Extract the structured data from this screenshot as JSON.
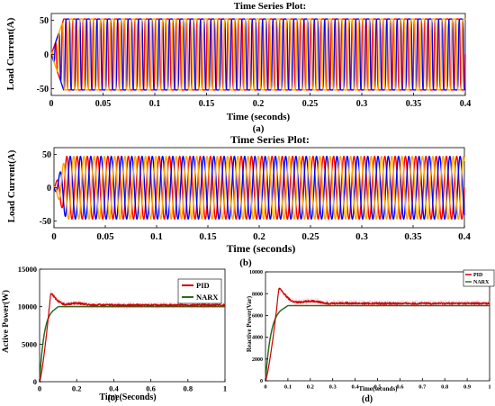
{
  "chart_data": [
    {
      "id": "a",
      "type": "line",
      "title": "Time Series Plot:",
      "xlabel": "Time (seconds)",
      "ylabel": "Load Current(A)",
      "caption": "(a)",
      "xlim": [
        0,
        0.4
      ],
      "ylim": [
        -60,
        60
      ],
      "xticks": [
        "0",
        "0.05",
        "0.1",
        "0.15",
        "0.2",
        "0.25",
        "0.3",
        "0.35",
        "0.4"
      ],
      "yticks": [
        "-50",
        "0",
        "50"
      ],
      "ytick_values": [
        -50,
        0,
        50
      ],
      "waveform": "square-ish three-phase",
      "frequency_hz": 100,
      "amplitude": 52,
      "series": [
        {
          "phase_deg": 0,
          "color": "#ff0000"
        },
        {
          "phase_deg": -120,
          "color": "#0000ff"
        },
        {
          "phase_deg": 120,
          "color": "#ffa500"
        }
      ]
    },
    {
      "id": "b",
      "type": "line",
      "title": "Time Series Plot:",
      "xlabel": "Time (seconds)",
      "ylabel": "Load Current(A)",
      "caption": "(b)",
      "xlim": [
        0,
        0.4
      ],
      "ylim": [
        -60,
        60
      ],
      "xticks": [
        "0",
        "0.05",
        "0.1",
        "0.15",
        "0.2",
        "0.25",
        "0.3",
        "0.35",
        "0.4"
      ],
      "yticks": [
        "-50",
        "0",
        "50"
      ],
      "ytick_values": [
        -50,
        0,
        50
      ],
      "waveform": "sinusoidal three-phase",
      "frequency_hz": 100,
      "amplitude": 47,
      "series": [
        {
          "phase_deg": 0,
          "color": "#ff0000"
        },
        {
          "phase_deg": -120,
          "color": "#0000ff"
        },
        {
          "phase_deg": 120,
          "color": "#ffa500"
        }
      ]
    },
    {
      "id": "c",
      "type": "line",
      "xlabel": "Time(Seconds)",
      "ylabel": "Active Power(W)",
      "caption": "(c)",
      "xlim": [
        0,
        1
      ],
      "ylim": [
        0,
        15000
      ],
      "xticks": [
        "0",
        "0.2",
        "0.4",
        "0.6",
        "0.8",
        "1"
      ],
      "yticks": [
        "0",
        "5000",
        "10000",
        "15000"
      ],
      "ytick_values": [
        0,
        5000,
        10000,
        15000
      ],
      "legend": "top-right",
      "series": [
        {
          "name": "PID",
          "color": "#cc0000",
          "steady": 10200,
          "peak": 11800,
          "peak_t": 0.06
        },
        {
          "name": "NARX",
          "color": "#2e6b1e",
          "steady": 10000,
          "peak": 10000,
          "peak_t": 0.08
        }
      ]
    },
    {
      "id": "d",
      "type": "line",
      "xlabel": "Time(seconds)",
      "ylabel": "Reactive Power(Var)",
      "caption": "(d)",
      "xlim": [
        0,
        1
      ],
      "ylim": [
        0,
        10000
      ],
      "xticks": [
        "0",
        "0.1",
        "0.2",
        "0.3",
        "0.4",
        "0.5",
        "0.6",
        "0.7",
        "0.8",
        "0.9",
        "1"
      ],
      "yticks": [
        "0",
        "2000",
        "4000",
        "6000",
        "8000",
        "10000"
      ],
      "ytick_values": [
        0,
        2000,
        4000,
        6000,
        8000,
        10000
      ],
      "legend": "top-right",
      "series": [
        {
          "name": "PID",
          "color": "#cc0000",
          "steady": 7100,
          "peak": 8500,
          "peak_t": 0.06
        },
        {
          "name": "NARX",
          "color": "#2e6b1e",
          "steady": 6900,
          "peak": 6900,
          "peak_t": 0.08
        }
      ]
    }
  ]
}
